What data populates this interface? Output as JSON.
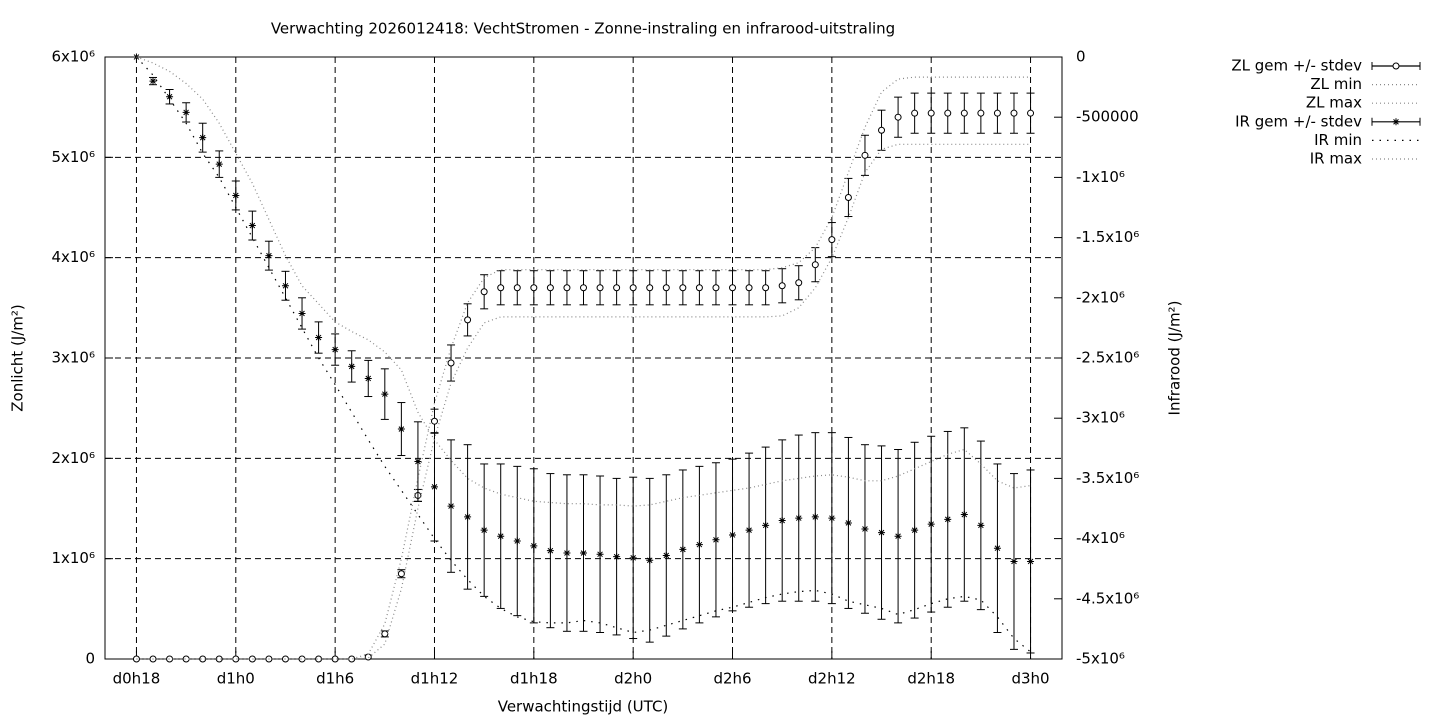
{
  "chart_data": {
    "type": "errorbar",
    "title": "Verwachting 2026012418: VechtStromen - Zonne-instraling en infrarood-uitstraling",
    "x_label": "Verwachtingstijd (UTC)",
    "y_label": "Zonlicht (J/m²)",
    "y2_label": "Infrarood (J/m²)",
    "x": [
      18,
      19,
      20,
      21,
      22,
      23,
      24,
      25,
      26,
      27,
      28,
      29,
      30,
      31,
      32,
      33,
      34,
      35,
      36,
      37,
      38,
      39,
      40,
      41,
      42,
      43,
      44,
      45,
      46,
      47,
      48,
      49,
      50,
      51,
      52,
      53,
      54,
      55,
      56,
      57,
      58,
      59,
      60,
      61,
      62,
      63,
      64,
      65,
      66,
      67,
      68,
      69,
      70,
      71,
      72
    ],
    "xlim": [
      16.1,
      73.9
    ],
    "xticks": [
      {
        "value": 18,
        "label": "d0h18"
      },
      {
        "value": 24,
        "label": "d1h0"
      },
      {
        "value": 30,
        "label": "d1h6"
      },
      {
        "value": 36,
        "label": "d1h12"
      },
      {
        "value": 42,
        "label": "d1h18"
      },
      {
        "value": 48,
        "label": "d2h0"
      },
      {
        "value": 54,
        "label": "d2h6"
      },
      {
        "value": 60,
        "label": "d2h12"
      },
      {
        "value": 66,
        "label": "d2h18"
      },
      {
        "value": 72,
        "label": "d3h0"
      }
    ],
    "ylim": [
      0,
      6000000
    ],
    "yticks": [
      0,
      {
        "value": 1000000,
        "label": "1x10⁶"
      },
      {
        "value": 2000000,
        "label": "2x10⁶"
      },
      {
        "value": 3000000,
        "label": "3x10⁶"
      },
      {
        "value": 4000000,
        "label": "4x10⁶"
      },
      {
        "value": 5000000,
        "label": "5x10⁶"
      },
      {
        "value": 6000000,
        "label": "6x10⁶"
      }
    ],
    "y2lim": [
      -5000000,
      0
    ],
    "y2ticks": [
      0,
      -500000,
      {
        "value": -1000000,
        "label": "-1x10⁶"
      },
      {
        "value": -1500000,
        "label": "-1.5x10⁶"
      },
      {
        "value": -2000000,
        "label": "-2x10⁶"
      },
      {
        "value": -2500000,
        "label": "-2.5x10⁶"
      },
      {
        "value": -3000000,
        "label": "-3x10⁶"
      },
      {
        "value": -3500000,
        "label": "-3.5x10⁶"
      },
      {
        "value": -4000000,
        "label": "-4x10⁶"
      },
      {
        "value": -4500000,
        "label": "-4.5x10⁶"
      },
      {
        "value": -5000000,
        "label": "-5x10⁶"
      }
    ],
    "grid": true,
    "legend": "top-right",
    "series": [
      {
        "name": "ZL gem +/- stdev",
        "style": "errorbar",
        "marker": "circle",
        "color": "#000000",
        "values": [
          0,
          0,
          0,
          0,
          0,
          0,
          0,
          0,
          0,
          0,
          0,
          0,
          0,
          0,
          20000,
          250000,
          850000,
          1630000,
          2370000,
          2950000,
          3380000,
          3660000,
          3700000,
          3700000,
          3700000,
          3700000,
          3700000,
          3700000,
          3700000,
          3700000,
          3700000,
          3700000,
          3700000,
          3700000,
          3700000,
          3700000,
          3700000,
          3700000,
          3700000,
          3720000,
          3750000,
          3930000,
          4180000,
          4600000,
          5020000,
          5270000,
          5400000,
          5440000,
          5440000,
          5440000,
          5440000,
          5440000,
          5440000,
          5440000,
          5440000
        ],
        "errors": [
          0,
          0,
          0,
          0,
          0,
          0,
          0,
          0,
          0,
          0,
          0,
          0,
          0,
          0,
          20000,
          30000,
          40000,
          60000,
          120000,
          180000,
          160000,
          170000,
          170000,
          170000,
          170000,
          170000,
          170000,
          170000,
          170000,
          170000,
          170000,
          170000,
          170000,
          170000,
          170000,
          170000,
          170000,
          170000,
          170000,
          170000,
          170000,
          170000,
          170000,
          190000,
          200000,
          200000,
          200000,
          200000,
          200000,
          200000,
          200000,
          200000,
          200000,
          200000,
          200000
        ]
      },
      {
        "name": "ZL min",
        "style": "line",
        "dash": "1 3",
        "color": "#888888",
        "values": [
          0,
          0,
          0,
          0,
          0,
          0,
          0,
          0,
          0,
          0,
          0,
          0,
          0,
          0,
          10000,
          150000,
          700000,
          1500000,
          2200000,
          2750000,
          3100000,
          3350000,
          3410000,
          3410000,
          3410000,
          3410000,
          3410000,
          3410000,
          3410000,
          3410000,
          3410000,
          3410000,
          3410000,
          3410000,
          3410000,
          3410000,
          3410000,
          3410000,
          3410000,
          3420000,
          3500000,
          3700000,
          4000000,
          4400000,
          4850000,
          5080000,
          5130000,
          5130000,
          5130000,
          5130000,
          5130000,
          5130000,
          5130000,
          5130000,
          5130000
        ]
      },
      {
        "name": "ZL max",
        "style": "line",
        "dash": "1 3",
        "color": "#888888",
        "values": [
          0,
          0,
          0,
          0,
          0,
          0,
          0,
          0,
          0,
          0,
          0,
          0,
          0,
          0,
          50000,
          350000,
          1000000,
          1800000,
          2550000,
          3100000,
          3550000,
          3800000,
          3880000,
          3880000,
          3880000,
          3880000,
          3880000,
          3880000,
          3880000,
          3880000,
          3880000,
          3880000,
          3880000,
          3880000,
          3880000,
          3880000,
          3880000,
          3880000,
          3880000,
          3900000,
          3950000,
          4100000,
          4400000,
          4850000,
          5300000,
          5650000,
          5780000,
          5800000,
          5800000,
          5800000,
          5800000,
          5800000,
          5800000,
          5800000,
          5800000
        ]
      },
      {
        "name": "IR gem +/- stdev",
        "style": "errorbar",
        "marker": "star",
        "axis": "y2",
        "color": "#000000",
        "values": [
          0,
          -200000,
          -330000,
          -460000,
          -670000,
          -890000,
          -1150000,
          -1400000,
          -1650000,
          -1900000,
          -2130000,
          -2330000,
          -2430000,
          -2570000,
          -2670000,
          -2800000,
          -3090000,
          -3360000,
          -3570000,
          -3730000,
          -3820000,
          -3930000,
          -3980000,
          -4020000,
          -4060000,
          -4100000,
          -4120000,
          -4120000,
          -4130000,
          -4150000,
          -4160000,
          -4180000,
          -4140000,
          -4090000,
          -4050000,
          -4010000,
          -3970000,
          -3930000,
          -3890000,
          -3850000,
          -3830000,
          -3820000,
          -3830000,
          -3870000,
          -3920000,
          -3950000,
          -3980000,
          -3930000,
          -3880000,
          -3840000,
          -3800000,
          -3890000,
          -4080000,
          -4190000,
          -4190000
        ],
        "errors": [
          0,
          30000,
          60000,
          80000,
          120000,
          110000,
          120000,
          120000,
          120000,
          120000,
          130000,
          130000,
          130000,
          130000,
          150000,
          210000,
          220000,
          330000,
          450000,
          550000,
          600000,
          550000,
          600000,
          620000,
          640000,
          640000,
          650000,
          650000,
          650000,
          650000,
          670000,
          680000,
          670000,
          660000,
          650000,
          640000,
          630000,
          640000,
          650000,
          670000,
          690000,
          700000,
          710000,
          710000,
          700000,
          720000,
          720000,
          730000,
          730000,
          730000,
          720000,
          700000,
          700000,
          730000,
          760000
        ]
      },
      {
        "name": "IR min",
        "style": "line",
        "dash": "1.5 6",
        "axis": "y2",
        "color": "#000000",
        "values": [
          0,
          -150000,
          -350000,
          -550000,
          -800000,
          -1000000,
          -1250000,
          -1500000,
          -1750000,
          -2000000,
          -2250000,
          -2500000,
          -2720000,
          -2950000,
          -3180000,
          -3400000,
          -3600000,
          -3800000,
          -4000000,
          -4180000,
          -4340000,
          -4480000,
          -4580000,
          -4650000,
          -4690000,
          -4700000,
          -4700000,
          -4680000,
          -4700000,
          -4740000,
          -4780000,
          -4760000,
          -4720000,
          -4680000,
          -4640000,
          -4600000,
          -4570000,
          -4530000,
          -4490000,
          -4460000,
          -4440000,
          -4430000,
          -4460000,
          -4520000,
          -4550000,
          -4580000,
          -4630000,
          -4590000,
          -4540000,
          -4500000,
          -4480000,
          -4510000,
          -4650000,
          -4830000,
          -4940000
        ]
      },
      {
        "name": "IR max",
        "style": "line",
        "dash": "1 3",
        "axis": "y2",
        "color": "#888888",
        "values": [
          0,
          -50000,
          -120000,
          -220000,
          -350000,
          -550000,
          -800000,
          -1050000,
          -1350000,
          -1650000,
          -1900000,
          -2050000,
          -2200000,
          -2280000,
          -2350000,
          -2450000,
          -2600000,
          -2950000,
          -3180000,
          -3350000,
          -3500000,
          -3580000,
          -3630000,
          -3660000,
          -3690000,
          -3700000,
          -3710000,
          -3710000,
          -3720000,
          -3720000,
          -3730000,
          -3720000,
          -3690000,
          -3660000,
          -3640000,
          -3620000,
          -3600000,
          -3580000,
          -3550000,
          -3520000,
          -3500000,
          -3480000,
          -3470000,
          -3490000,
          -3520000,
          -3520000,
          -3480000,
          -3420000,
          -3360000,
          -3300000,
          -3260000,
          -3380000,
          -3520000,
          -3580000,
          -3560000
        ]
      }
    ]
  }
}
